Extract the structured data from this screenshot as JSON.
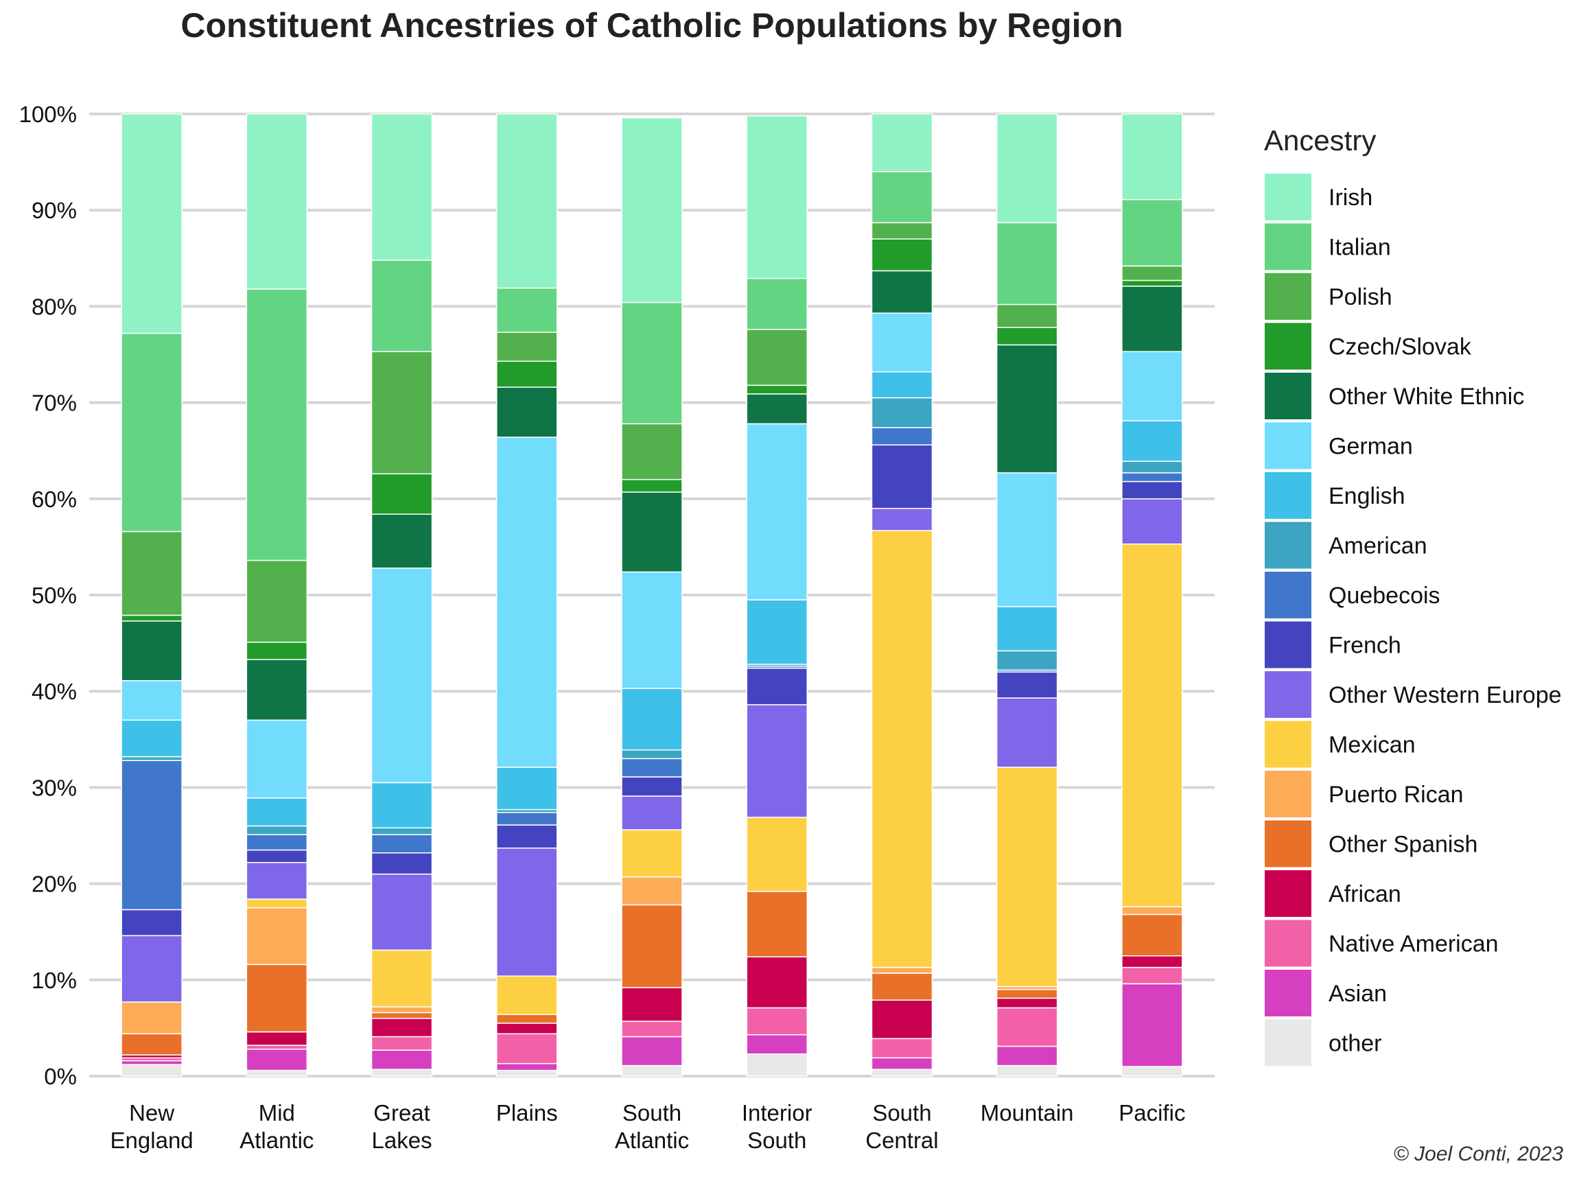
{
  "chart_data": {
    "type": "bar",
    "stacked": true,
    "title": "Constituent Ancestries of Catholic Populations by Region",
    "xlabel": "",
    "ylabel": "",
    "ylim": [
      0,
      100
    ],
    "yticks": [
      "0%",
      "10%",
      "20%",
      "30%",
      "40%",
      "50%",
      "60%",
      "70%",
      "80%",
      "90%",
      "100%"
    ],
    "grid": true,
    "legend_title": "Ancestry",
    "legend_position": "right",
    "categories": [
      [
        "New",
        "England"
      ],
      [
        "Mid",
        "Atlantic"
      ],
      [
        "Great",
        "Lakes"
      ],
      [
        "Plains"
      ],
      [
        "South",
        "Atlantic"
      ],
      [
        "Interior",
        "South"
      ],
      [
        "South",
        "Central"
      ],
      [
        "Mountain"
      ],
      [
        "Pacific"
      ]
    ],
    "series": [
      {
        "name": "other",
        "color": "#e8e8e8",
        "values": [
          1.2,
          0.6,
          0.7,
          0.6,
          1.1,
          2.3,
          0.7,
          1.1,
          1.0
        ]
      },
      {
        "name": "Asian",
        "color": "#d63fbf",
        "values": [
          0.4,
          2.2,
          2.0,
          0.7,
          3.0,
          2.0,
          1.2,
          2.0,
          8.6
        ]
      },
      {
        "name": "Native American",
        "color": "#f261a8",
        "values": [
          0.3,
          0.4,
          1.4,
          3.1,
          1.6,
          2.8,
          2.0,
          4.0,
          1.7
        ]
      },
      {
        "name": "African",
        "color": "#c9004f",
        "values": [
          0.3,
          1.4,
          1.9,
          1.1,
          3.5,
          5.3,
          4.0,
          1.0,
          1.2
        ]
      },
      {
        "name": "Other Spanish",
        "color": "#e87028",
        "values": [
          2.2,
          7.0,
          0.6,
          0.9,
          8.6,
          6.8,
          2.8,
          0.9,
          4.3
        ]
      },
      {
        "name": "Puerto Rican",
        "color": "#fdab57",
        "values": [
          3.3,
          5.9,
          0.6,
          0.0,
          2.9,
          0.0,
          0.6,
          0.3,
          0.8
        ]
      },
      {
        "name": "Mexican",
        "color": "#fdd044",
        "values": [
          0.0,
          0.9,
          5.9,
          4.0,
          4.9,
          7.7,
          45.4,
          22.8,
          37.7
        ]
      },
      {
        "name": "Other Western Europe",
        "color": "#8066e8",
        "values": [
          6.9,
          3.8,
          7.9,
          13.3,
          3.5,
          11.7,
          2.3,
          7.2,
          4.7
        ]
      },
      {
        "name": "French",
        "color": "#4544c0",
        "values": [
          2.7,
          1.3,
          2.2,
          2.4,
          2.0,
          3.8,
          6.6,
          2.7,
          1.8
        ]
      },
      {
        "name": "Quebecois",
        "color": "#4077cb",
        "values": [
          15.5,
          1.6,
          1.9,
          1.3,
          1.9,
          0.2,
          1.8,
          0.2,
          0.9
        ]
      },
      {
        "name": "American",
        "color": "#3ba5c2",
        "values": [
          0.4,
          0.9,
          0.7,
          0.3,
          0.9,
          0.2,
          3.1,
          2.0,
          1.2
        ]
      },
      {
        "name": "English",
        "color": "#3fc0e8",
        "values": [
          3.8,
          2.9,
          4.7,
          4.4,
          6.4,
          6.7,
          2.7,
          4.6,
          4.2
        ]
      },
      {
        "name": "German",
        "color": "#72dcfd",
        "values": [
          4.1,
          8.1,
          22.3,
          34.3,
          12.1,
          18.3,
          6.1,
          13.9,
          7.2
        ]
      },
      {
        "name": "Other White Ethnic",
        "color": "#0f7546",
        "values": [
          6.2,
          6.3,
          5.6,
          5.2,
          8.3,
          3.1,
          4.4,
          13.3,
          6.8
        ]
      },
      {
        "name": "Czech/Slovak",
        "color": "#219b2a",
        "values": [
          0.6,
          1.8,
          4.2,
          2.7,
          1.3,
          0.9,
          3.3,
          1.8,
          0.6
        ]
      },
      {
        "name": "Polish",
        "color": "#52b14c",
        "values": [
          8.7,
          8.5,
          12.7,
          3.0,
          5.8,
          5.8,
          1.7,
          2.4,
          1.5
        ]
      },
      {
        "name": "Italian",
        "color": "#63d482",
        "values": [
          20.6,
          28.2,
          9.5,
          4.6,
          12.6,
          5.3,
          5.3,
          8.5,
          6.9
        ]
      },
      {
        "name": "Irish",
        "color": "#8ff2c5",
        "values": [
          22.8,
          18.2,
          15.2,
          18.1,
          19.2,
          16.9,
          6.0,
          11.3,
          8.9
        ]
      }
    ],
    "legend_order": [
      "Irish",
      "Italian",
      "Polish",
      "Czech/Slovak",
      "Other White Ethnic",
      "German",
      "English",
      "American",
      "Quebecois",
      "French",
      "Other Western Europe",
      "Mexican",
      "Puerto Rican",
      "Other Spanish",
      "African",
      "Native American",
      "Asian",
      "other"
    ]
  },
  "credit": "© Joel Conti, 2023"
}
